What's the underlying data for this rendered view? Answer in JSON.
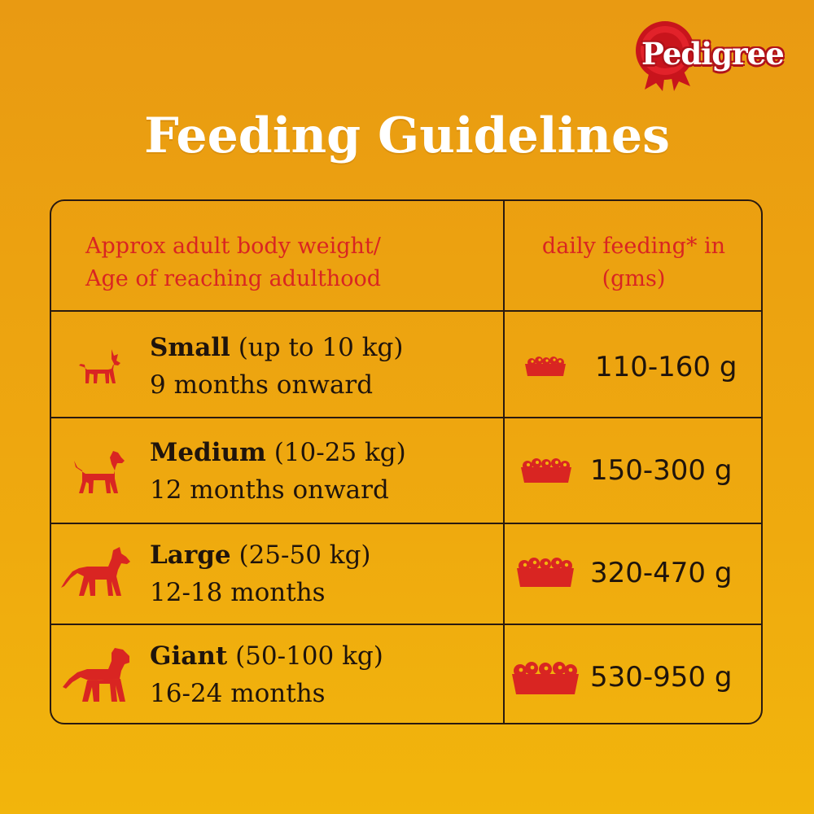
{
  "brand": {
    "name": "Pedigree",
    "accent": "#d92522"
  },
  "title": "Feeding Guidelines",
  "table": {
    "headers": {
      "left_line1": "Approx adult body weight/",
      "left_line2": "Age of reaching adulthood",
      "right_line1": "daily feeding* in",
      "right_line2": "(gms)"
    },
    "rows": [
      {
        "size": "Small",
        "weight": "(up to 10 kg)",
        "age": "9 months onward",
        "amount": "110-160 g",
        "icon": "small-dog-icon"
      },
      {
        "size": "Medium",
        "weight": "(10-25 kg)",
        "age": "12 months onward",
        "amount": "150-300 g",
        "icon": "medium-dog-icon"
      },
      {
        "size": "Large",
        "weight": "(25-50 kg)",
        "age": "12-18 months",
        "amount": "320-470 g",
        "icon": "large-dog-icon"
      },
      {
        "size": "Giant",
        "weight": "(50-100 kg)",
        "age": "16-24 months",
        "amount": "530-950 g",
        "icon": "giant-dog-icon"
      }
    ]
  }
}
